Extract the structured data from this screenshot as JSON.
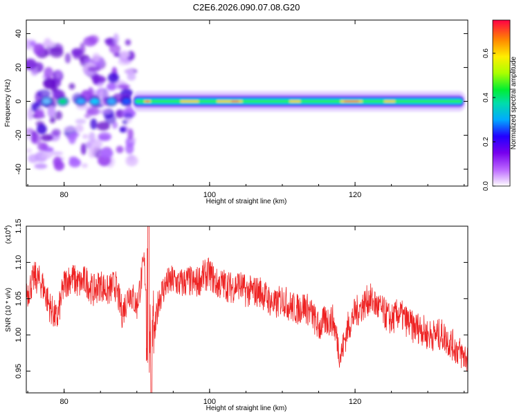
{
  "title": "C2E6.2026.090.07.08.G20",
  "top_chart": {
    "xlabel": "Height of straight line (km)",
    "ylabel": "Frequency (Hz)",
    "colorbar_label": "Normalized spectral amplitude",
    "colorbar_ticks": [
      "0.0",
      "0.2",
      "0.4",
      "0.6"
    ]
  },
  "bottom_chart": {
    "xlabel": "Height of straight line (km)",
    "ylabel": "SNR (10 * v/v)",
    "multiplier": "(x10",
    "multiplier_exp": "4",
    "multiplier_close": ")"
  },
  "colors": {
    "line": "#ee2222",
    "axis": "#000000"
  },
  "chart_data": [
    {
      "type": "heatmap",
      "title": "C2E6.2026.090.07.08.G20",
      "xlabel": "Height of straight line (km)",
      "ylabel": "Frequency (Hz)",
      "xlim": [
        74.8,
        135.5
      ],
      "ylim": [
        -50,
        48
      ],
      "xticks": [
        80,
        100,
        120
      ],
      "xtick_labels": [
        "80",
        "100",
        "120"
      ],
      "yticks": [
        -40,
        -20,
        0,
        20,
        40
      ],
      "ytick_labels": [
        "-40",
        "-20",
        "0",
        "20",
        "40"
      ],
      "colorbar": {
        "label": "Normalized spectral amplitude",
        "range": [
          0,
          0.75
        ],
        "ticks": [
          0,
          0.2,
          0.4,
          0.6
        ],
        "tick_labels": [
          "0.0",
          "0.2",
          "0.4",
          "0.6"
        ]
      },
      "bands": [
        {
          "from_km": 75,
          "to_km": 79.5,
          "freq_range": [
            -40,
            40
          ],
          "level": 0.18
        },
        {
          "from_km": 80.5,
          "to_km": 85.5,
          "freq_range": [
            -38,
            38
          ],
          "level": 0.2
        },
        {
          "from_km": 85.5,
          "to_km": 89.5,
          "freq_range": [
            -38,
            38
          ],
          "level": 0.2
        }
      ],
      "ridge": {
        "freq": 0,
        "from_km": 89.5,
        "to_km": 135,
        "peak_level": 0.65
      }
    },
    {
      "type": "line",
      "title": "",
      "xlabel": "Height of straight line (km)",
      "ylabel": "SNR (10 * v/v)",
      "y_multiplier": 10000,
      "xlim": [
        74.8,
        135.5
      ],
      "ylim": [
        0.92,
        1.15
      ],
      "xticks": [
        80,
        100,
        120
      ],
      "xtick_labels": [
        "80",
        "100",
        "120"
      ],
      "yticks": [
        0.95,
        1.0,
        1.05,
        1.1,
        1.15
      ],
      "ytick_labels": [
        "0.95",
        "1.00",
        "1.05",
        "1.10",
        "1.15"
      ],
      "series": [
        {
          "name": "SNR",
          "x": [
            75,
            76,
            77,
            78,
            79,
            80,
            81,
            82,
            83,
            84,
            85,
            86,
            87,
            88,
            89,
            90,
            91,
            92,
            93,
            94,
            95,
            96,
            97,
            98,
            99,
            100,
            101,
            102,
            103,
            104,
            105,
            106,
            107,
            108,
            109,
            110,
            111,
            112,
            113,
            114,
            115,
            116,
            117,
            118,
            119,
            120,
            121,
            122,
            123,
            124,
            125,
            126,
            127,
            128,
            129,
            130,
            131,
            132,
            133,
            134,
            135
          ],
          "values": [
            1.06,
            1.08,
            1.07,
            1.04,
            1.02,
            1.07,
            1.08,
            1.07,
            1.075,
            1.06,
            1.07,
            1.06,
            1.07,
            1.03,
            1.06,
            1.04,
            1.1,
            0.96,
            1.05,
            1.07,
            1.075,
            1.07,
            1.075,
            1.07,
            1.08,
            1.085,
            1.07,
            1.07,
            1.065,
            1.07,
            1.06,
            1.06,
            1.06,
            1.05,
            1.04,
            1.05,
            1.04,
            1.035,
            1.04,
            1.03,
            1.01,
            1.02,
            1.02,
            0.97,
            1.01,
            1.03,
            1.04,
            1.05,
            1.04,
            1.03,
            1.02,
            1.03,
            1.02,
            1.01,
            1.01,
            1.0,
            1.0,
            1.0,
            0.99,
            0.98,
            0.97
          ]
        }
      ]
    }
  ]
}
